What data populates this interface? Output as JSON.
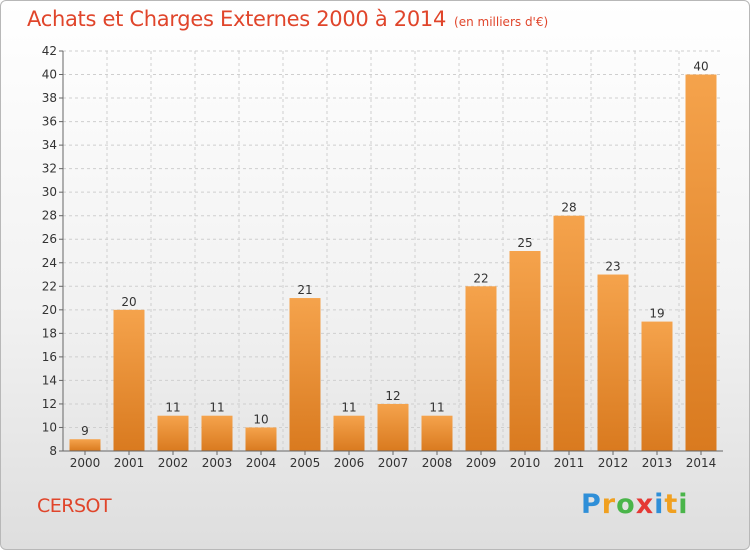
{
  "title": "Achats et Charges Externes 2000 à 2014",
  "subtitle": "(en milliers d'€)",
  "location": "CERSOT",
  "logo": {
    "letters": [
      "P",
      "r",
      "o",
      "x",
      "i",
      "t",
      "i"
    ],
    "colors": [
      "#2f8fd8",
      "#f0a020",
      "#4ab54a",
      "#e53935",
      "#2f8fd8",
      "#f0a020",
      "#4ab54a"
    ]
  },
  "colors": {
    "title": "#e0452b",
    "bar_light": "#f5a34c",
    "bar_dark": "#d97a1f",
    "grid": "#cfcfcf",
    "axis": "#666666"
  },
  "chart_data": {
    "type": "bar",
    "title": "Achats et Charges Externes 2000 à 2014",
    "subtitle": "(en milliers d'€)",
    "categories": [
      "2000",
      "2001",
      "2002",
      "2003",
      "2004",
      "2005",
      "2006",
      "2007",
      "2008",
      "2009",
      "2010",
      "2011",
      "2012",
      "2013",
      "2014"
    ],
    "values": [
      9,
      20,
      11,
      11,
      10,
      21,
      11,
      12,
      11,
      22,
      25,
      28,
      23,
      19,
      40
    ],
    "ylim": [
      8,
      42
    ],
    "yticks": [
      8,
      10,
      12,
      14,
      16,
      18,
      20,
      22,
      24,
      26,
      28,
      30,
      32,
      34,
      36,
      38,
      40,
      42
    ],
    "grid": "horizontal-dashed",
    "legend": "none"
  }
}
